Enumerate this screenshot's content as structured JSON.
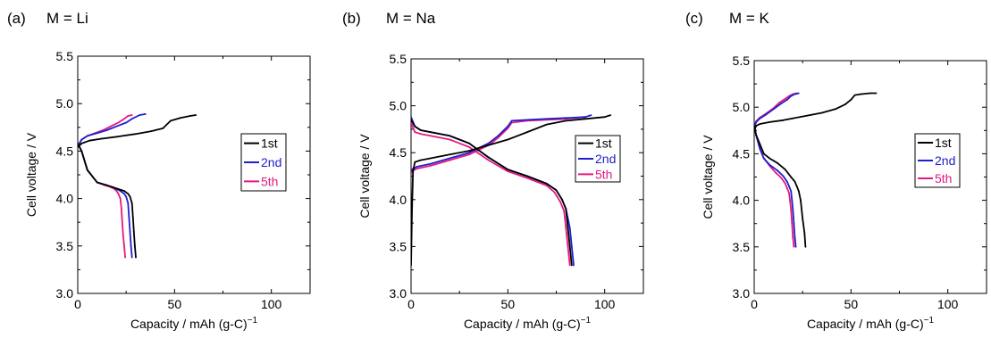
{
  "chart_data": [
    {
      "type": "line",
      "panel_label": "(a)",
      "title": "M = Li",
      "xlabel": "Capacity / mAh (g-C)",
      "xlabel_sup": "−1",
      "ylabel": "Cell voltage / V",
      "xlim": [
        0,
        120
      ],
      "ylim": [
        3.0,
        5.5
      ],
      "xticks": [
        "0",
        "50",
        "100"
      ],
      "yticks": [
        "3.0",
        "3.5",
        "4.0",
        "4.5",
        "5.0",
        "5.5"
      ],
      "legend_position": "right-middle",
      "series": [
        {
          "name": "1st",
          "color": "#000000",
          "charge": {
            "x": [
              0,
              2,
              6,
              12,
              20,
              30,
              38,
              44,
              48,
              53,
              58,
              61
            ],
            "y": [
              4.54,
              4.58,
              4.61,
              4.63,
              4.65,
              4.68,
              4.71,
              4.74,
              4.82,
              4.85,
              4.87,
              4.88
            ]
          },
          "discharge": {
            "x": [
              0,
              2,
              5,
              10,
              15,
              18,
              21,
              24,
              26,
              27,
              28,
              28.5,
              29,
              29.5,
              30
            ],
            "y": [
              4.58,
              4.5,
              4.3,
              4.17,
              4.14,
              4.12,
              4.1,
              4.08,
              4.05,
              4.02,
              3.95,
              3.8,
              3.65,
              3.5,
              3.38
            ]
          }
        },
        {
          "name": "2nd",
          "color": "#1f1fcc",
          "charge": {
            "x": [
              0,
              2,
              5,
              10,
              15,
              20,
              25,
              28,
              32,
              35
            ],
            "y": [
              4.55,
              4.62,
              4.66,
              4.69,
              4.72,
              4.76,
              4.8,
              4.84,
              4.88,
              4.89
            ]
          },
          "discharge": {
            "x": [
              0,
              2,
              5,
              10,
              15,
              18,
              20,
              22,
              24,
              25,
              26,
              26.5,
              27,
              27.5,
              28
            ],
            "y": [
              4.58,
              4.5,
              4.3,
              4.17,
              4.14,
              4.12,
              4.1,
              4.08,
              4.05,
              4.02,
              3.95,
              3.8,
              3.65,
              3.5,
              3.38
            ]
          }
        },
        {
          "name": "5th",
          "color": "#e6197f",
          "charge": {
            "x": [
              0,
              2,
              5,
              9,
              13,
              17,
              21,
              24,
              26,
              28
            ],
            "y": [
              4.55,
              4.62,
              4.66,
              4.69,
              4.72,
              4.76,
              4.8,
              4.84,
              4.87,
              4.88
            ]
          },
          "discharge": {
            "x": [
              0,
              2,
              5,
              10,
              14,
              17,
              19,
              20,
              21,
              22,
              22.5,
              23,
              23.5,
              24,
              24.5
            ],
            "y": [
              4.58,
              4.5,
              4.3,
              4.17,
              4.14,
              4.12,
              4.1,
              4.08,
              4.05,
              4.0,
              3.9,
              3.75,
              3.6,
              3.5,
              3.38
            ]
          }
        }
      ]
    },
    {
      "type": "line",
      "panel_label": "(b)",
      "title": "M = Na",
      "xlabel": "Capacity / mAh (g-C)",
      "xlabel_sup": "−1",
      "ylabel": "Cell voltage / V",
      "xlim": [
        0,
        120
      ],
      "ylim": [
        3.0,
        5.5
      ],
      "xticks": [
        "0",
        "50",
        "100"
      ],
      "yticks": [
        "3.0",
        "3.5",
        "4.0",
        "4.5",
        "5.0",
        "5.5"
      ],
      "legend_position": "right-middle",
      "series": [
        {
          "name": "1st",
          "color": "#000000",
          "charge": {
            "x": [
              0,
              0.5,
              1,
              2,
              5,
              10,
              20,
              30,
              40,
              50,
              55,
              60,
              70,
              80,
              90,
              100,
              103
            ],
            "y": [
              3.3,
              3.9,
              4.3,
              4.4,
              4.42,
              4.44,
              4.48,
              4.52,
              4.58,
              4.64,
              4.68,
              4.72,
              4.8,
              4.84,
              4.86,
              4.88,
              4.9
            ]
          },
          "discharge": {
            "x": [
              0,
              2,
              5,
              10,
              20,
              30,
              40,
              50,
              60,
              70,
              75,
              78,
              80,
              81,
              82,
              83
            ],
            "y": [
              4.85,
              4.78,
              4.74,
              4.72,
              4.68,
              4.6,
              4.45,
              4.32,
              4.25,
              4.17,
              4.1,
              4.0,
              3.9,
              3.7,
              3.5,
              3.3
            ]
          }
        },
        {
          "name": "2nd",
          "color": "#1f1fcc",
          "charge": {
            "x": [
              0,
              1,
              3,
              10,
              20,
              30,
              40,
              45,
              50,
              52,
              60,
              70,
              80,
              90,
              93
            ],
            "y": [
              4.3,
              4.33,
              4.35,
              4.38,
              4.44,
              4.5,
              4.6,
              4.68,
              4.78,
              4.84,
              4.85,
              4.86,
              4.87,
              4.88,
              4.9
            ]
          },
          "discharge": {
            "x": [
              0,
              2,
              5,
              10,
              20,
              30,
              40,
              50,
              60,
              70,
              75,
              78,
              80,
              82,
              83,
              84
            ],
            "y": [
              4.88,
              4.78,
              4.74,
              4.72,
              4.68,
              4.6,
              4.45,
              4.32,
              4.25,
              4.17,
              4.1,
              4.0,
              3.9,
              3.7,
              3.5,
              3.3
            ]
          }
        },
        {
          "name": "5th",
          "color": "#e6197f",
          "charge": {
            "x": [
              0,
              1,
              3,
              10,
              20,
              30,
              40,
              45,
              50,
              52,
              60,
              70,
              80,
              90
            ],
            "y": [
              4.28,
              4.31,
              4.33,
              4.36,
              4.42,
              4.48,
              4.58,
              4.66,
              4.76,
              4.82,
              4.84,
              4.85,
              4.86,
              4.88
            ]
          },
          "discharge": {
            "x": [
              0,
              2,
              5,
              10,
              20,
              30,
              40,
              50,
              60,
              70,
              74,
              77,
              79,
              80,
              81,
              82
            ],
            "y": [
              4.82,
              4.72,
              4.7,
              4.68,
              4.64,
              4.56,
              4.42,
              4.3,
              4.23,
              4.15,
              4.08,
              3.98,
              3.88,
              3.7,
              3.5,
              3.3
            ]
          }
        }
      ]
    },
    {
      "type": "line",
      "panel_label": "(c)",
      "title": "M = K",
      "xlabel": "Capacity / mAh (g-C)",
      "xlabel_sup": "−1",
      "ylabel": "Cell voltage / V",
      "xlim": [
        0,
        120
      ],
      "ylim": [
        3.0,
        5.5
      ],
      "xticks": [
        "0",
        "50",
        "100"
      ],
      "yticks": [
        "3.0",
        "3.5",
        "4.0",
        "4.5",
        "5.0",
        "5.5"
      ],
      "legend_position": "right-middle",
      "series": [
        {
          "name": "1st",
          "color": "#000000",
          "charge": {
            "x": [
              0,
              1,
              3,
              8,
              15,
              25,
              35,
              42,
              47,
              50,
              52,
              55,
              60,
              63
            ],
            "y": [
              4.75,
              4.8,
              4.82,
              4.84,
              4.86,
              4.9,
              4.94,
              4.98,
              5.03,
              5.08,
              5.13,
              5.14,
              5.15,
              5.15
            ]
          },
          "discharge": {
            "x": [
              0,
              1,
              3,
              5,
              8,
              12,
              16,
              19,
              21,
              22,
              23,
              24,
              25,
              26,
              26.5
            ],
            "y": [
              4.8,
              4.7,
              4.6,
              4.5,
              4.45,
              4.4,
              4.33,
              4.25,
              4.2,
              4.15,
              4.1,
              4.0,
              3.8,
              3.65,
              3.5
            ]
          }
        },
        {
          "name": "2nd",
          "color": "#1f1fcc",
          "charge": {
            "x": [
              0,
              1,
              3,
              6,
              10,
              14,
              17,
              19,
              21,
              23
            ],
            "y": [
              4.78,
              4.84,
              4.88,
              4.92,
              4.98,
              5.04,
              5.08,
              5.12,
              5.14,
              5.15
            ]
          },
          "discharge": {
            "x": [
              0,
              1,
              3,
              5,
              8,
              12,
              15,
              17,
              18,
              19,
              19.5,
              20,
              20.5,
              21,
              21.5
            ],
            "y": [
              4.8,
              4.7,
              4.55,
              4.45,
              4.38,
              4.32,
              4.26,
              4.2,
              4.15,
              4.1,
              4.0,
              3.9,
              3.75,
              3.6,
              3.5
            ]
          }
        },
        {
          "name": "5th",
          "color": "#e6197f",
          "charge": {
            "x": [
              0,
              1,
              3,
              6,
              10,
              13,
              16,
              18,
              20,
              22
            ],
            "y": [
              4.78,
              4.85,
              4.89,
              4.93,
              4.99,
              5.05,
              5.09,
              5.12,
              5.14,
              5.15
            ]
          },
          "discharge": {
            "x": [
              0,
              1,
              3,
              5,
              8,
              11,
              14,
              16,
              17,
              18,
              18.5,
              19,
              19.5,
              20,
              20.5
            ],
            "y": [
              4.8,
              4.7,
              4.55,
              4.45,
              4.37,
              4.3,
              4.24,
              4.18,
              4.13,
              4.08,
              4.0,
              3.9,
              3.75,
              3.6,
              3.5
            ]
          }
        }
      ]
    }
  ]
}
